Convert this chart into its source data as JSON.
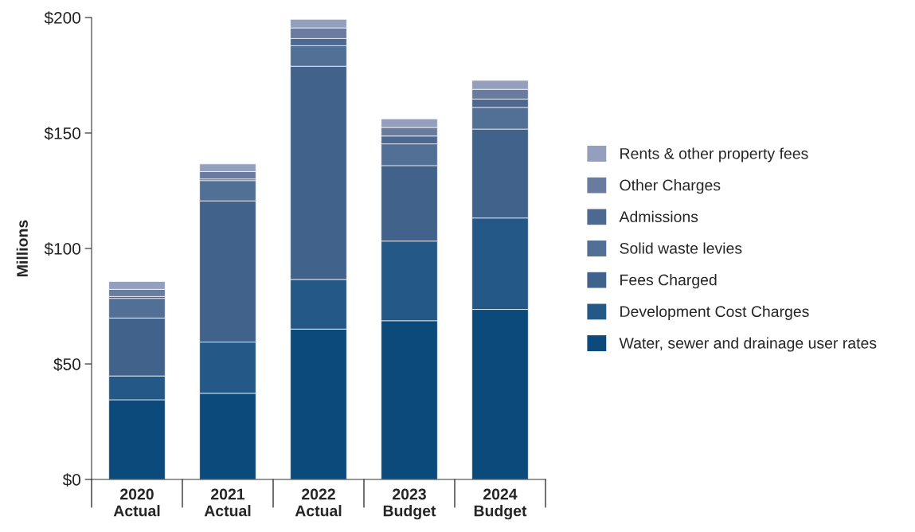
{
  "chart_data": {
    "type": "bar",
    "stacked": true,
    "ylabel": "Millions",
    "categories": [
      "2020\nActual",
      "2021\nActual",
      "2022\nActual",
      "2023\nBudget",
      "2024\nBudget"
    ],
    "series": [
      {
        "name": "Water, sewer and drainage user rates",
        "color": "#0b4a7a",
        "values": [
          34.5,
          37.3,
          65.1,
          68.7,
          73.6
        ]
      },
      {
        "name": "Development Cost Charges",
        "color": "#245886",
        "values": [
          10.3,
          22.2,
          21.5,
          34.5,
          39.6
        ]
      },
      {
        "name": "Fees Charged",
        "color": "#41628b",
        "values": [
          25.1,
          61.1,
          92.3,
          32.7,
          38.5
        ]
      },
      {
        "name": "Solid waste levies",
        "color": "#526f96",
        "values": [
          8.5,
          8.8,
          8.9,
          9.4,
          9.4
        ]
      },
      {
        "name": "Admissions",
        "color": "#4d6992",
        "values": [
          0.8,
          0.7,
          3.1,
          3.4,
          3.6
        ]
      },
      {
        "name": "Other Charges",
        "color": "#6a7ba0",
        "values": [
          3.1,
          3.2,
          4.6,
          3.7,
          4.2
        ]
      },
      {
        "name": "Rents & other property fees",
        "color": "#939fbd",
        "values": [
          3.4,
          3.3,
          3.7,
          3.7,
          3.9
        ]
      }
    ],
    "ylim": [
      0,
      200
    ],
    "yticks": [
      {
        "value": 0,
        "label": "$0"
      },
      {
        "value": 50,
        "label": "$50"
      },
      {
        "value": 100,
        "label": "$100"
      },
      {
        "value": 150,
        "label": "$150"
      },
      {
        "value": 200,
        "label": "$200"
      }
    ],
    "legend": "right"
  }
}
